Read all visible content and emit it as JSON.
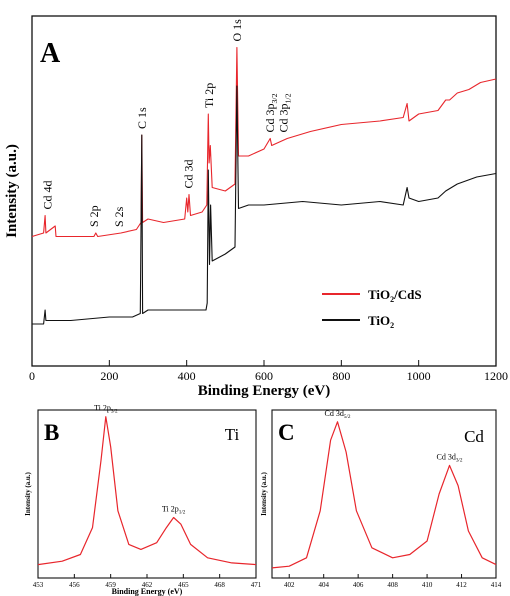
{
  "chart_data": [
    {
      "type": "line",
      "panel_letter": "A",
      "xlabel": "Binding Energy (eV)",
      "ylabel": "Intensity (a.u.)",
      "xlim": [
        0,
        1200
      ],
      "x_ticks": [
        0,
        200,
        400,
        600,
        800,
        1000,
        1200
      ],
      "legend_position": "right",
      "series": [
        {
          "name": "TiO2/CdS",
          "color": "#e8262c",
          "points": [
            [
              0,
              0.37
            ],
            [
              30,
              0.38
            ],
            [
              34,
              0.43
            ],
            [
              36,
              0.38
            ],
            [
              60,
              0.4
            ],
            [
              62,
              0.37
            ],
            [
              100,
              0.37
            ],
            [
              160,
              0.37
            ],
            [
              165,
              0.38
            ],
            [
              170,
              0.37
            ],
            [
              230,
              0.38
            ],
            [
              270,
              0.39
            ],
            [
              282,
              0.41
            ],
            [
              284,
              0.66
            ],
            [
              286,
              0.41
            ],
            [
              300,
              0.42
            ],
            [
              340,
              0.41
            ],
            [
              395,
              0.42
            ],
            [
              400,
              0.48
            ],
            [
              403,
              0.44
            ],
            [
              406,
              0.49
            ],
            [
              410,
              0.43
            ],
            [
              440,
              0.44
            ],
            [
              452,
              0.46
            ],
            [
              456,
              0.72
            ],
            [
              458,
              0.58
            ],
            [
              461,
              0.63
            ],
            [
              466,
              0.51
            ],
            [
              500,
              0.5
            ],
            [
              525,
              0.52
            ],
            [
              530,
              0.91
            ],
            [
              534,
              0.6
            ],
            [
              560,
              0.6
            ],
            [
              600,
              0.62
            ],
            [
              616,
              0.65
            ],
            [
              620,
              0.63
            ],
            [
              660,
              0.65
            ],
            [
              720,
              0.67
            ],
            [
              800,
              0.69
            ],
            [
              900,
              0.7
            ],
            [
              960,
              0.71
            ],
            [
              970,
              0.75
            ],
            [
              975,
              0.7
            ],
            [
              1000,
              0.72
            ],
            [
              1050,
              0.73
            ],
            [
              1070,
              0.76
            ],
            [
              1080,
              0.76
            ],
            [
              1100,
              0.78
            ],
            [
              1130,
              0.79
            ],
            [
              1160,
              0.81
            ],
            [
              1200,
              0.82
            ]
          ]
        },
        {
          "name": "TiO2",
          "color": "#111111",
          "points": [
            [
              0,
              0.12
            ],
            [
              30,
              0.12
            ],
            [
              34,
              0.16
            ],
            [
              36,
              0.13
            ],
            [
              60,
              0.13
            ],
            [
              100,
              0.13
            ],
            [
              200,
              0.14
            ],
            [
              260,
              0.14
            ],
            [
              280,
              0.15
            ],
            [
              284,
              0.66
            ],
            [
              286,
              0.15
            ],
            [
              300,
              0.16
            ],
            [
              400,
              0.16
            ],
            [
              450,
              0.16
            ],
            [
              453,
              0.18
            ],
            [
              456,
              0.56
            ],
            [
              459,
              0.29
            ],
            [
              462,
              0.46
            ],
            [
              466,
              0.3
            ],
            [
              500,
              0.32
            ],
            [
              525,
              0.34
            ],
            [
              530,
              0.8
            ],
            [
              534,
              0.45
            ],
            [
              560,
              0.46
            ],
            [
              600,
              0.46
            ],
            [
              700,
              0.47
            ],
            [
              800,
              0.46
            ],
            [
              900,
              0.47
            ],
            [
              960,
              0.46
            ],
            [
              970,
              0.51
            ],
            [
              975,
              0.48
            ],
            [
              1000,
              0.47
            ],
            [
              1050,
              0.48
            ],
            [
              1070,
              0.5
            ],
            [
              1100,
              0.52
            ],
            [
              1150,
              0.54
            ],
            [
              1200,
              0.55
            ]
          ]
        }
      ],
      "annotations": [
        {
          "text": "Cd 4d",
          "x": 40
        },
        {
          "text": "S 2p",
          "x": 160
        },
        {
          "text": "S 2s",
          "x": 225
        },
        {
          "text": "C 1s",
          "x": 284
        },
        {
          "text": "Cd 3d",
          "x": 405
        },
        {
          "text": "Ti 2p",
          "x": 458
        },
        {
          "text": "O 1s",
          "x": 530
        },
        {
          "text": "Cd 3p3/2",
          "x": 616
        },
        {
          "text": "Cd 3p1/2",
          "x": 650
        }
      ]
    },
    {
      "type": "line",
      "panel_letter": "B",
      "element": "Ti",
      "xlabel": "Binding Energy (eV)",
      "ylabel": "Intensity (a.u.)",
      "xlim": [
        453,
        471
      ],
      "x_ticks": [
        453,
        456,
        459,
        462,
        465,
        468,
        471
      ],
      "series": [
        {
          "color": "#e8262c",
          "points": [
            [
              453,
              0.08
            ],
            [
              455,
              0.1
            ],
            [
              456.5,
              0.14
            ],
            [
              457.5,
              0.3
            ],
            [
              458.2,
              0.7
            ],
            [
              458.6,
              0.96
            ],
            [
              459.0,
              0.78
            ],
            [
              459.6,
              0.4
            ],
            [
              460.5,
              0.2
            ],
            [
              461.5,
              0.17
            ],
            [
              462.8,
              0.21
            ],
            [
              463.6,
              0.3
            ],
            [
              464.2,
              0.36
            ],
            [
              464.8,
              0.32
            ],
            [
              465.6,
              0.2
            ],
            [
              467,
              0.12
            ],
            [
              469,
              0.09
            ],
            [
              471,
              0.08
            ]
          ]
        }
      ],
      "annotations": [
        {
          "text": "Ti 2p3/2",
          "x": 458.6
        },
        {
          "text": "Ti 2p1/2",
          "x": 464.2
        }
      ]
    },
    {
      "type": "line",
      "panel_letter": "C",
      "element": "Cd",
      "xlabel": "Binding Energy (eV)",
      "ylabel": "Intensity (a.u.)",
      "xlim": [
        401,
        414
      ],
      "x_ticks": [
        402,
        404,
        406,
        408,
        410,
        412,
        414
      ],
      "series": [
        {
          "color": "#e8262c",
          "points": [
            [
              401,
              0.06
            ],
            [
              402,
              0.07
            ],
            [
              403,
              0.12
            ],
            [
              403.8,
              0.4
            ],
            [
              404.4,
              0.82
            ],
            [
              404.8,
              0.93
            ],
            [
              405.3,
              0.75
            ],
            [
              405.9,
              0.4
            ],
            [
              406.8,
              0.18
            ],
            [
              408,
              0.12
            ],
            [
              409,
              0.14
            ],
            [
              410,
              0.22
            ],
            [
              410.7,
              0.5
            ],
            [
              411.3,
              0.67
            ],
            [
              411.8,
              0.55
            ],
            [
              412.4,
              0.28
            ],
            [
              413.2,
              0.12
            ],
            [
              414,
              0.08
            ]
          ]
        }
      ],
      "annotations": [
        {
          "text": "Cd 3d5/2",
          "x": 404.8
        },
        {
          "text": "Cd 3d3/2",
          "x": 411.3
        }
      ]
    }
  ]
}
